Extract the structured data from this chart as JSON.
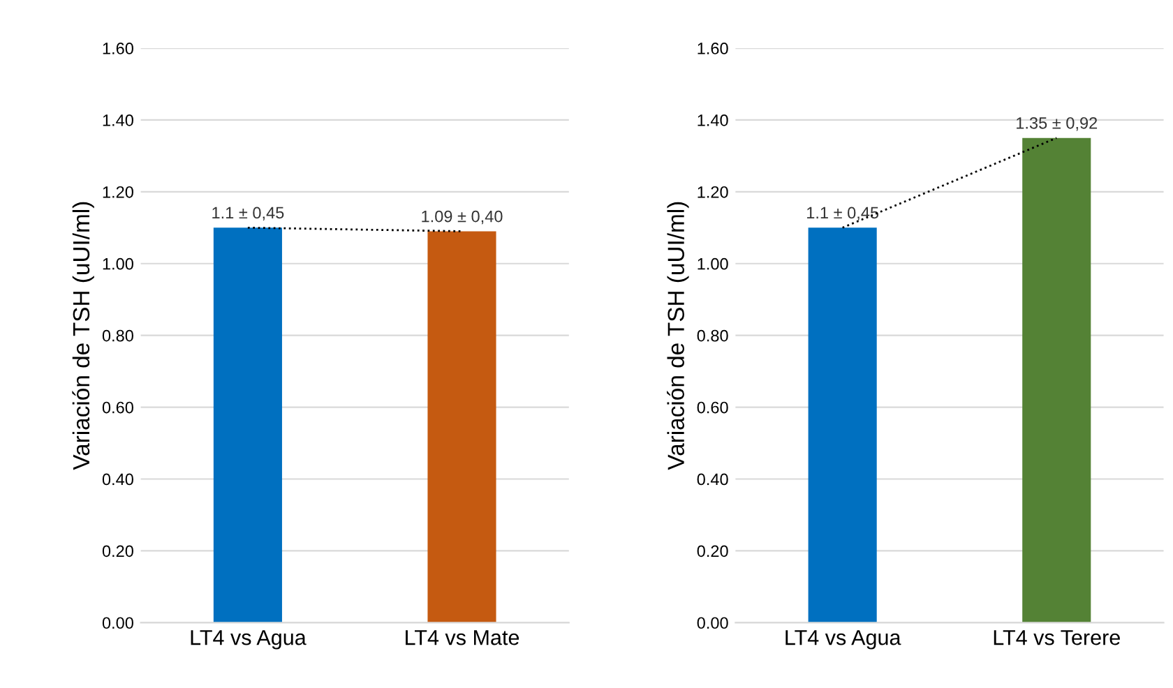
{
  "chart_data": [
    {
      "type": "bar",
      "ylabel": "Variación de TSH (uUI/ml)",
      "categories": [
        "LT4 vs Agua",
        "LT4 vs Mate"
      ],
      "series": [
        {
          "colors": [
            "#0070c0",
            "#c55a11"
          ],
          "values": [
            1.1,
            1.09
          ],
          "value_labels": [
            "1.1 ± 0,45",
            "1.09 ± 0,40"
          ]
        },
        {
          "type": "line",
          "color": "#000000",
          "line_style": "dotted",
          "marker": "none",
          "values": [
            1.1,
            1.09
          ]
        }
      ],
      "ylim": [
        0,
        1.6
      ],
      "yticks": [
        {
          "value": 0,
          "label": "0.00"
        },
        {
          "value": 0.2,
          "label": "0.20"
        },
        {
          "value": 0.4,
          "label": "0.40"
        },
        {
          "value": 0.6,
          "label": "0.60"
        },
        {
          "value": 0.8,
          "label": "0.80"
        },
        {
          "value": 1.0,
          "label": "1.00"
        },
        {
          "value": 1.2,
          "label": "1.20"
        },
        {
          "value": 1.4,
          "label": "1.40"
        },
        {
          "value": 1.6,
          "label": "1.60"
        }
      ],
      "grid": "y",
      "legend": false
    },
    {
      "type": "bar",
      "ylabel": "Variación de TSH (uUI/ml)",
      "categories": [
        "LT4 vs Agua",
        "LT4 vs Terere"
      ],
      "series": [
        {
          "colors": [
            "#0070c0",
            "#548235"
          ],
          "values": [
            1.1,
            1.35
          ],
          "value_labels": [
            "1.1 ± 0,45",
            "1.35 ± 0,92"
          ]
        },
        {
          "type": "line",
          "color": "#000000",
          "line_style": "dotted",
          "marker": "none",
          "values": [
            1.1,
            1.35
          ]
        }
      ],
      "ylim": [
        0,
        1.6
      ],
      "yticks": [
        {
          "value": 0,
          "label": "0.00"
        },
        {
          "value": 0.2,
          "label": "0.20"
        },
        {
          "value": 0.4,
          "label": "0.40"
        },
        {
          "value": 0.6,
          "label": "0.60"
        },
        {
          "value": 0.8,
          "label": "0.80"
        },
        {
          "value": 1.0,
          "label": "1.00"
        },
        {
          "value": 1.2,
          "label": "1.20"
        },
        {
          "value": 1.4,
          "label": "1.40"
        },
        {
          "value": 1.6,
          "label": "1.60"
        }
      ],
      "grid": "y",
      "legend": false
    }
  ]
}
